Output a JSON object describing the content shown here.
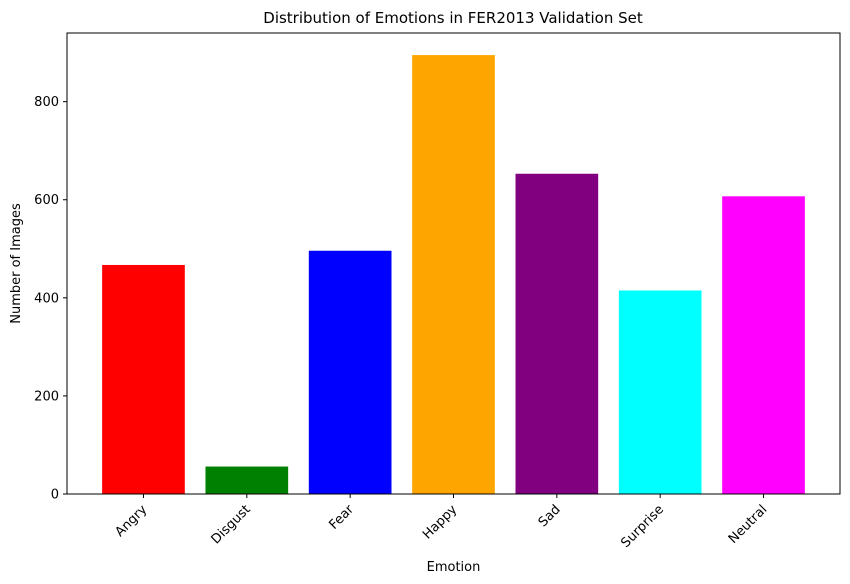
{
  "chart_data": {
    "type": "bar",
    "title": "Distribution of Emotions in FER2013 Validation Set",
    "xlabel": "Emotion",
    "ylabel": "Number of Images",
    "categories": [
      "Angry",
      "Disgust",
      "Fear",
      "Happy",
      "Sad",
      "Surprise",
      "Neutral"
    ],
    "values": [
      467,
      56,
      496,
      895,
      653,
      415,
      607
    ],
    "colors": [
      "#ff0000",
      "#008000",
      "#0000ff",
      "#ffa500",
      "#800080",
      "#00ffff",
      "#ff00ff"
    ],
    "ylim": [
      0,
      940
    ],
    "yticks": [
      0,
      200,
      400,
      600,
      800
    ],
    "ytick_labels": [
      "0",
      "200",
      "400",
      "600",
      "800"
    ],
    "xtick_rotation_deg": 45,
    "grid": false,
    "legend": false
  }
}
